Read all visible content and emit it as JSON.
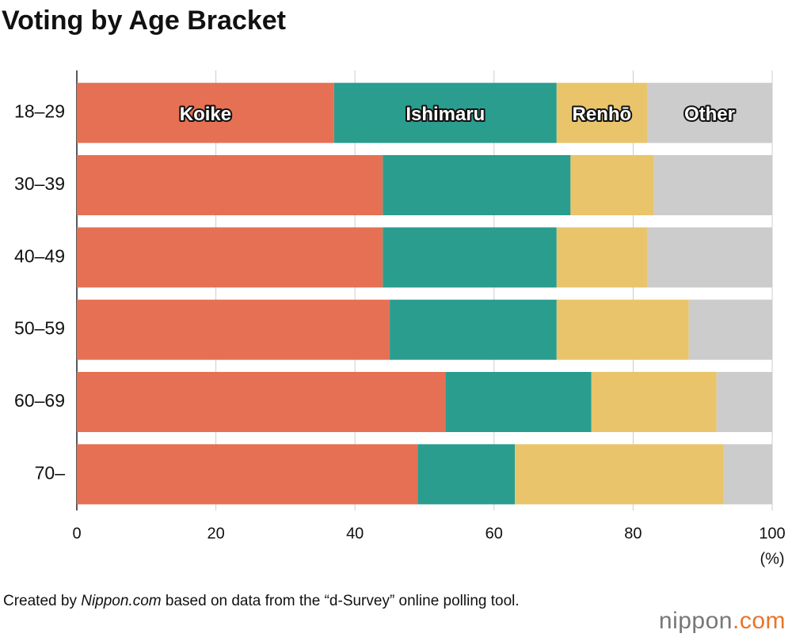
{
  "chart_data": {
    "type": "stacked-bar-horizontal",
    "title": "Voting by Age Bracket",
    "categories": [
      "18–29",
      "30–39",
      "40–49",
      "50–59",
      "60–69",
      "70–"
    ],
    "series": [
      {
        "name": "Koike",
        "color": "#e67053",
        "values": [
          37,
          44,
          44,
          45,
          53,
          49
        ]
      },
      {
        "name": "Ishimaru",
        "color": "#2a9d8f",
        "values": [
          32,
          27,
          25,
          24,
          21,
          14
        ]
      },
      {
        "name": "Renhō",
        "color": "#e9c46a",
        "values": [
          13,
          12,
          13,
          19,
          18,
          30
        ]
      },
      {
        "name": "Other",
        "color": "#cccccc",
        "values": [
          18,
          17,
          18,
          12,
          8,
          7
        ]
      }
    ],
    "xlim": [
      0,
      100
    ],
    "xticks": [
      0,
      20,
      40,
      60,
      80,
      100
    ],
    "x_unit": "(%)",
    "grid": true
  },
  "footer": {
    "source": [
      "Created by ",
      "Nippon.com",
      " based on data from the “d-Survey” online polling tool."
    ],
    "logo": [
      "nippon",
      ".com"
    ]
  }
}
